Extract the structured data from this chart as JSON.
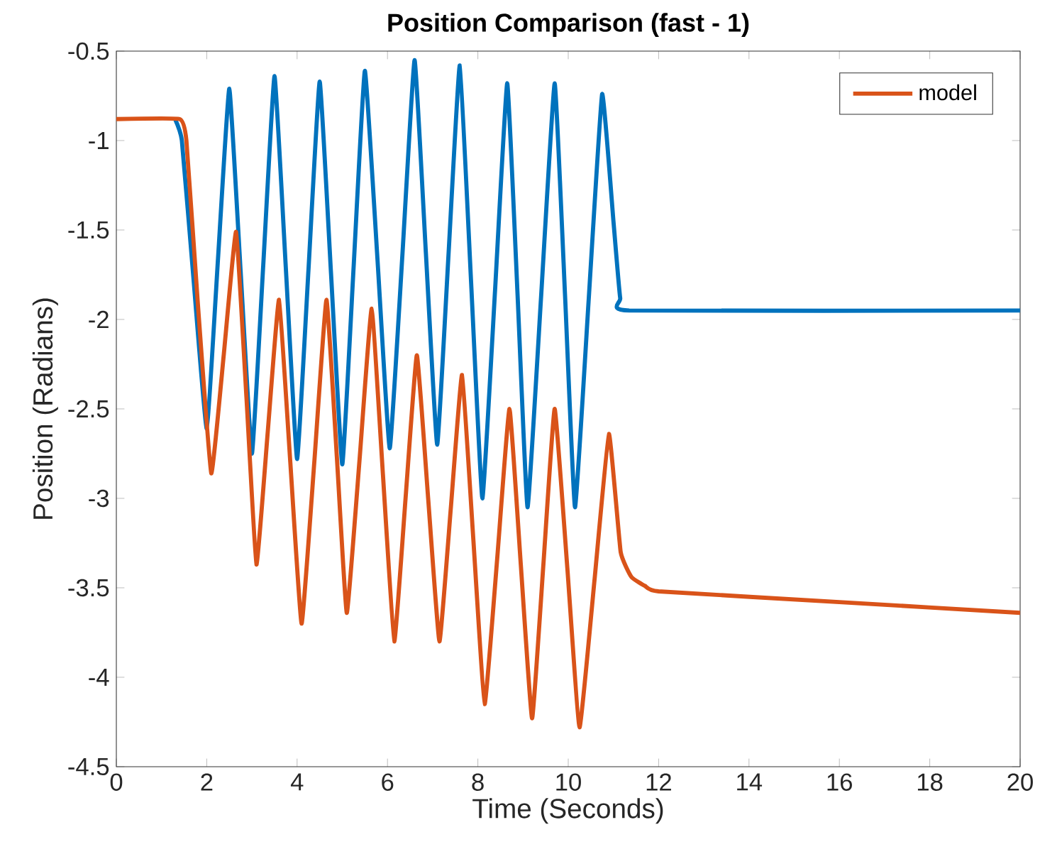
{
  "chart_data": {
    "type": "line",
    "title": "Position Comparison (fast - 1)",
    "xlabel": "Time (Seconds)",
    "ylabel": "Position (Radians)",
    "xlim": [
      0,
      20
    ],
    "ylim": [
      -4.5,
      -0.5
    ],
    "xticks": [
      0,
      2,
      4,
      6,
      8,
      10,
      12,
      14,
      16,
      18,
      20
    ],
    "yticks": [
      -4.5,
      -4,
      -3.5,
      -3,
      -2.5,
      -2,
      -1.5,
      -1,
      -0.5
    ],
    "legend": "top right",
    "series": [
      {
        "color": "#0072bd",
        "x": [
          1.3,
          1.45,
          1.7,
          2.0,
          2.25,
          2.5,
          2.75,
          3.0,
          3.25,
          3.5,
          3.75,
          4.0,
          4.25,
          4.5,
          4.75,
          5.0,
          5.25,
          5.5,
          5.78,
          6.05,
          6.33,
          6.6,
          6.85,
          7.1,
          7.35,
          7.6,
          7.85,
          8.1,
          8.38,
          8.65,
          8.88,
          9.1,
          9.4,
          9.7,
          9.93,
          10.15,
          10.45,
          10.75,
          11.0,
          11.15,
          11.35,
          20
        ],
        "values": [
          -0.88,
          -1.0,
          -1.75,
          -2.61,
          -1.66,
          -0.71,
          -1.73,
          -2.75,
          -1.7,
          -0.64,
          -1.71,
          -2.78,
          -1.73,
          -0.67,
          -1.74,
          -2.81,
          -1.71,
          -0.61,
          -1.67,
          -2.72,
          -1.64,
          -0.55,
          -1.63,
          -2.7,
          -1.64,
          -0.58,
          -1.79,
          -3.0,
          -1.84,
          -0.68,
          -1.87,
          -3.05,
          -1.87,
          -0.68,
          -1.87,
          -3.05,
          -1.9,
          -0.74,
          -1.45,
          -1.88,
          -1.95,
          -1.95
        ]
      },
      {
        "name": "model",
        "color": "#d95319",
        "x": [
          0,
          1.4,
          1.55,
          1.8,
          2.1,
          2.38,
          2.65,
          2.88,
          3.1,
          3.35,
          3.6,
          3.85,
          4.1,
          4.38,
          4.65,
          4.88,
          5.1,
          5.38,
          5.65,
          5.9,
          6.15,
          6.4,
          6.65,
          6.9,
          7.15,
          7.4,
          7.65,
          7.9,
          8.15,
          8.43,
          8.7,
          8.95,
          9.2,
          9.45,
          9.7,
          9.98,
          10.25,
          10.58,
          10.9,
          11.16,
          11.4,
          11.7,
          12,
          16,
          20
        ],
        "values": [
          -0.88,
          -0.88,
          -1.0,
          -1.9,
          -2.86,
          -2.19,
          -1.51,
          -2.44,
          -3.37,
          -2.63,
          -1.89,
          -2.8,
          -3.7,
          -2.8,
          -1.89,
          -2.77,
          -3.64,
          -2.79,
          -1.94,
          -2.87,
          -3.8,
          -3.0,
          -2.2,
          -3.0,
          -3.8,
          -3.06,
          -2.31,
          -3.23,
          -4.15,
          -3.33,
          -2.5,
          -3.37,
          -4.23,
          -3.37,
          -2.5,
          -3.39,
          -4.28,
          -3.46,
          -2.64,
          -3.3,
          -3.44,
          -3.49,
          -3.52,
          -3.58,
          -3.64
        ]
      }
    ]
  }
}
